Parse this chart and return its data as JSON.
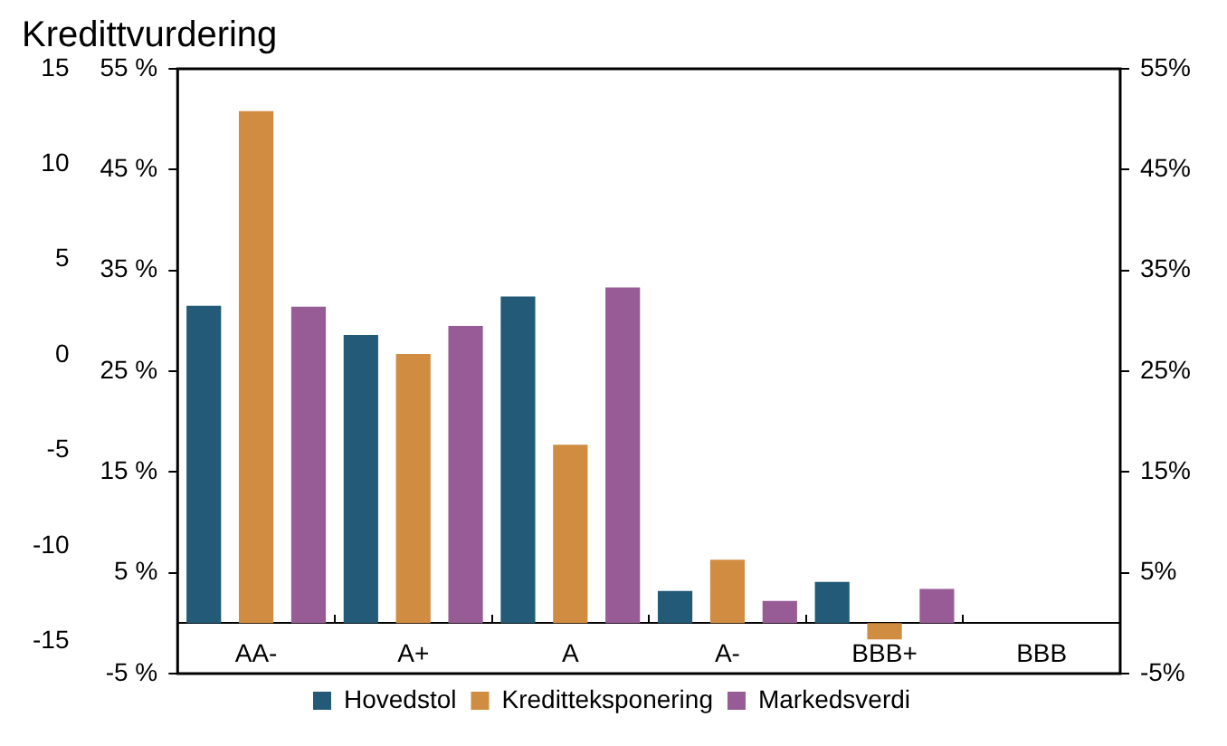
{
  "chart_data": {
    "type": "bar",
    "title": "Kredittvurdering",
    "categories": [
      "AA-",
      "A+",
      "A",
      "A-",
      "BBB+",
      "BBB"
    ],
    "series": [
      {
        "name": "Hovedstol",
        "color": "#225a78",
        "values": [
          31.5,
          28.6,
          32.4,
          3.2,
          4.1,
          0
        ]
      },
      {
        "name": "Kreditteksponering",
        "color": "#d08c40",
        "values": [
          50.8,
          26.7,
          17.7,
          6.3,
          -1.6,
          0
        ]
      },
      {
        "name": "Markedsverdi",
        "color": "#975b96",
        "values": [
          31.4,
          29.5,
          33.3,
          2.2,
          3.4,
          0
        ]
      }
    ],
    "ylim": [
      -5,
      55
    ],
    "yticks": [
      {
        "value": -5,
        "label": "-5 %"
      },
      {
        "value": 5,
        "label": "5 %"
      },
      {
        "value": 15,
        "label": "15 %"
      },
      {
        "value": 25,
        "label": "25 %"
      },
      {
        "value": 35,
        "label": "35 %"
      },
      {
        "value": 45,
        "label": "45 %"
      },
      {
        "value": 55,
        "label": "55 %"
      }
    ],
    "y2lim": [
      -5,
      55
    ],
    "y2ticks": [
      {
        "value": -5,
        "label": "-5%"
      },
      {
        "value": 5,
        "label": "5%"
      },
      {
        "value": 15,
        "label": "15%"
      },
      {
        "value": 25,
        "label": "25%"
      },
      {
        "value": 35,
        "label": "35%"
      },
      {
        "value": 45,
        "label": "45%"
      },
      {
        "value": 55,
        "label": "55%"
      }
    ],
    "y3lim": [
      -16.7,
      15
    ],
    "y3ticks": [
      -15,
      -10,
      -5,
      0,
      5,
      10,
      15
    ],
    "grid": false,
    "legend": "bottom"
  }
}
